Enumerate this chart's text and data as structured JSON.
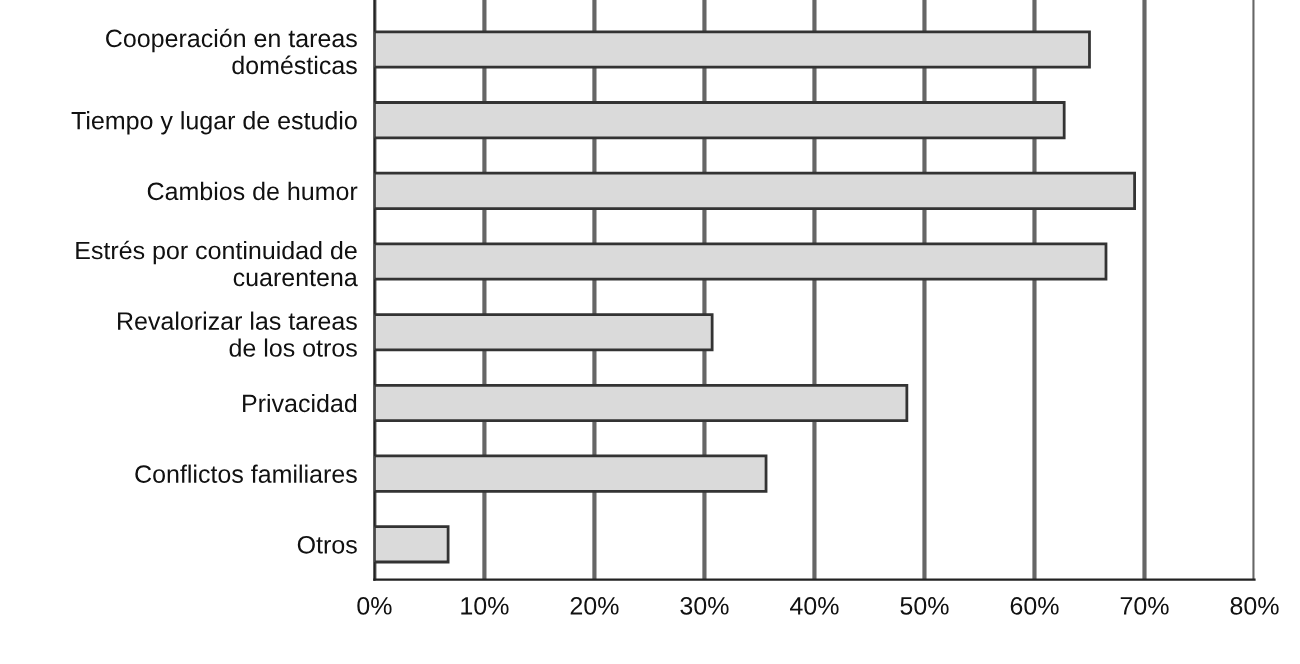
{
  "chart_data": {
    "type": "bar",
    "orientation": "horizontal",
    "categories": [
      "Cooperación en tareas\ndomésticas",
      "Tiempo y lugar de estudio",
      "Cambios de humor",
      "Estrés por continuidad de\ncuarentena",
      "Revalorizar las tareas\nde los otros",
      "Privacidad",
      "Conflictos familiares",
      "Otros"
    ],
    "values": [
      65.0,
      62.7,
      69.1,
      66.5,
      30.7,
      48.4,
      35.6,
      6.7
    ],
    "color": "#dadada",
    "xlim": [
      0,
      80
    ],
    "xticks": [
      {
        "value": 0,
        "label": "0%"
      },
      {
        "value": 10,
        "label": "10%"
      },
      {
        "value": 20,
        "label": "20%"
      },
      {
        "value": 30,
        "label": "30%"
      },
      {
        "value": 40,
        "label": "40%"
      },
      {
        "value": 50,
        "label": "50%"
      },
      {
        "value": 60,
        "label": "60%"
      },
      {
        "value": 70,
        "label": "70%"
      },
      {
        "value": 80,
        "label": "80%"
      }
    ],
    "grid": "x",
    "legend": false
  }
}
